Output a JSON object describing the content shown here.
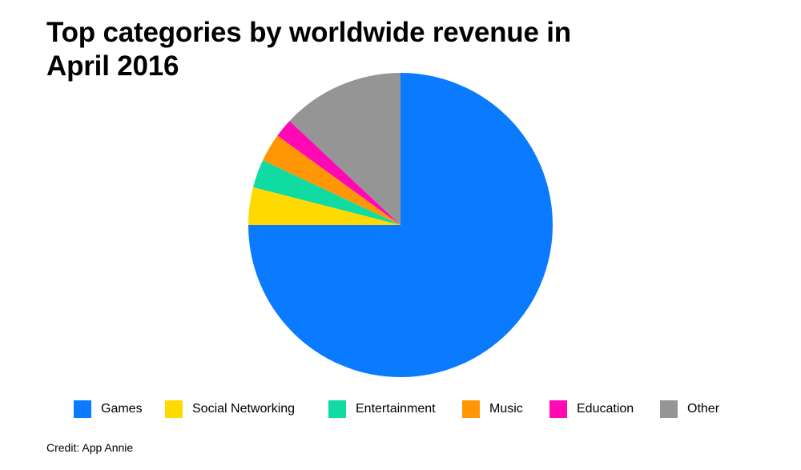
{
  "chart_data": {
    "type": "pie",
    "title": "Top categories by worldwide revenue in April 2016",
    "categories": [
      "Games",
      "Social Networking",
      "Entertainment",
      "Music",
      "Education",
      "Other"
    ],
    "values": [
      75,
      4,
      3,
      3,
      2,
      13
    ],
    "colors": [
      "#0A7AFF",
      "#FFDA00",
      "#0FDBA3",
      "#FF9605",
      "#FF09B5",
      "#959595"
    ],
    "legend_position": "bottom",
    "start_angle": "12 o'clock",
    "direction": "clockwise",
    "credit": "Credit: App Annie"
  }
}
